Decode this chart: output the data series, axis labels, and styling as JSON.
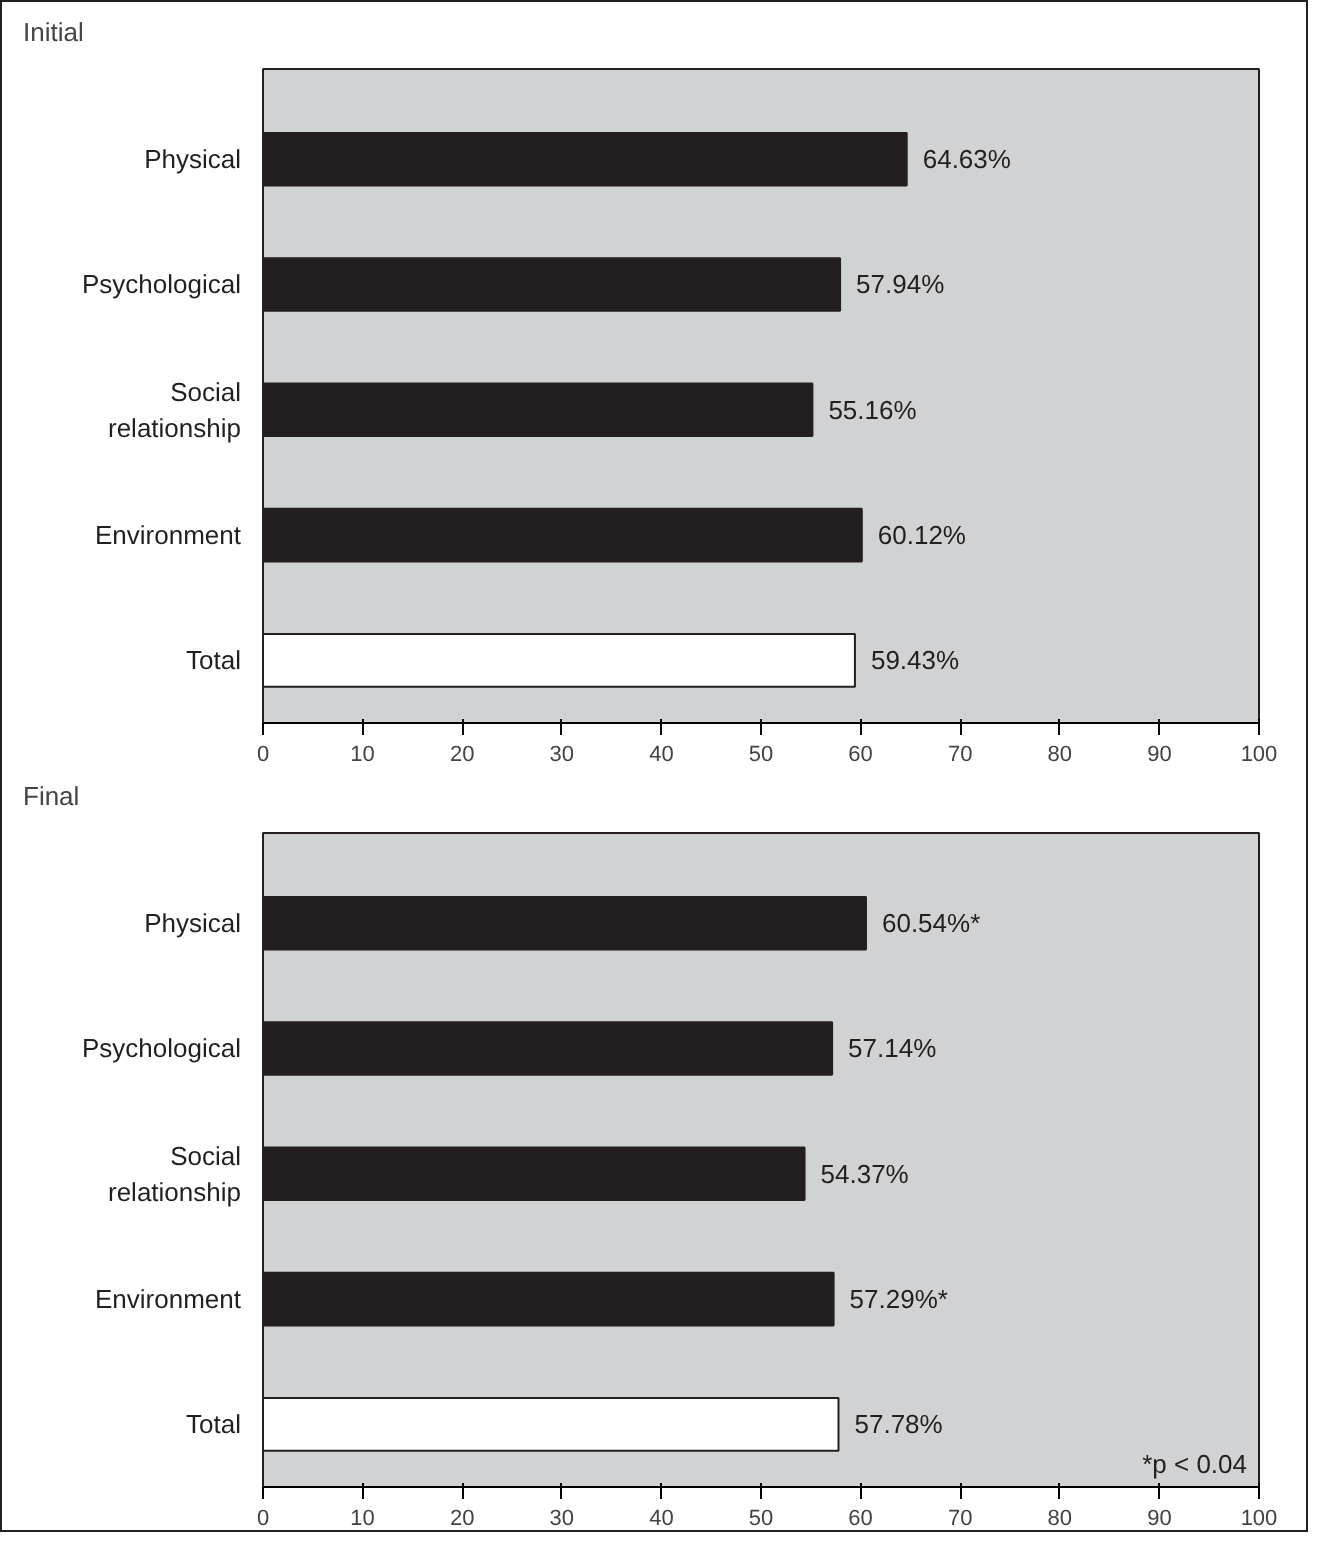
{
  "chart_data": [
    {
      "type": "bar",
      "orientation": "horizontal",
      "title": "Initial",
      "categories": [
        "Physical",
        "Psychological",
        "Social relationship",
        "Environment",
        "Total"
      ],
      "values": [
        64.63,
        57.94,
        55.16,
        60.12,
        59.43
      ],
      "colors": [
        "#231f20",
        "#231f20",
        "#231f20",
        "#231f20",
        "#ffffff"
      ],
      "value_labels": [
        "64.63%",
        "57.94%",
        "55.16%",
        "60.12%",
        "59.43%"
      ],
      "xlim": [
        0,
        100
      ],
      "xticks": [
        0,
        10,
        20,
        30,
        40,
        50,
        60,
        70,
        80,
        90,
        100
      ],
      "grid": false
    },
    {
      "type": "bar",
      "orientation": "horizontal",
      "title": "Final",
      "categories": [
        "Physical",
        "Psychological",
        "Social relationship",
        "Environment",
        "Total"
      ],
      "values": [
        60.54,
        57.14,
        54.37,
        57.29,
        57.78
      ],
      "colors": [
        "#231f20",
        "#231f20",
        "#231f20",
        "#231f20",
        "#ffffff"
      ],
      "value_labels": [
        "60.54%*",
        "57.14%",
        "54.37%",
        "57.29%*",
        "57.78%"
      ],
      "xlim": [
        0,
        100
      ],
      "xticks": [
        0,
        10,
        20,
        30,
        40,
        50,
        60,
        70,
        80,
        90,
        100
      ],
      "grid": false,
      "annotations": [
        "*p < 0.04"
      ]
    }
  ]
}
